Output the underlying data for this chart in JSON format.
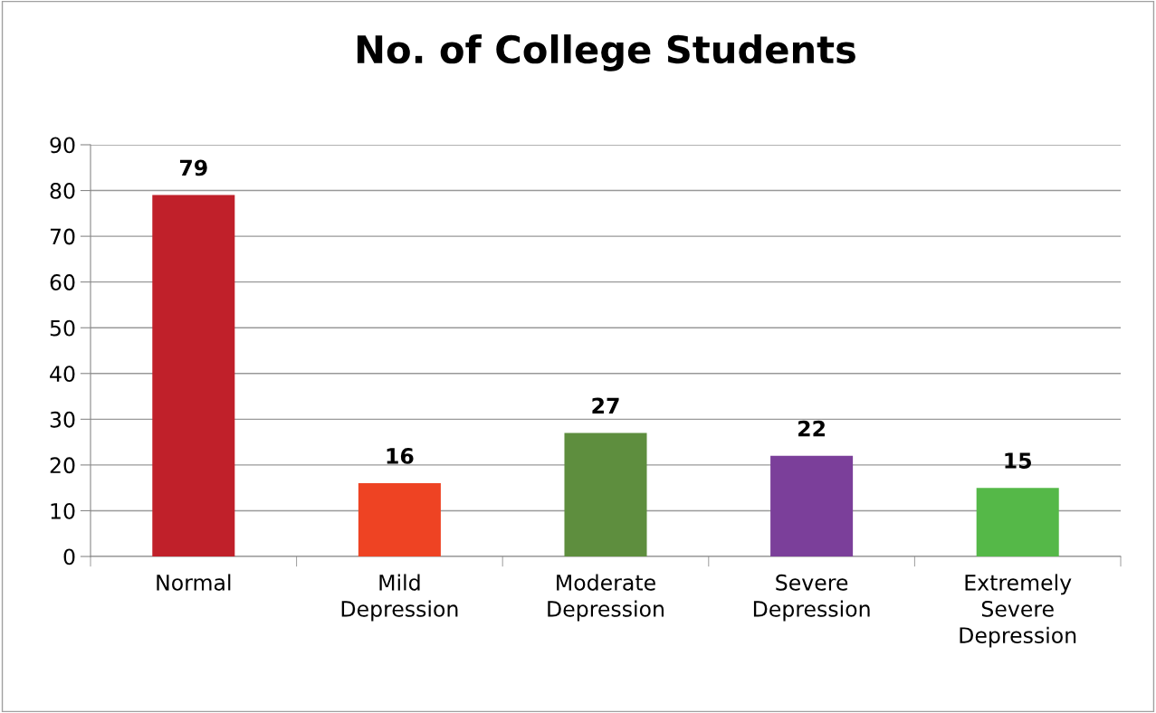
{
  "chart_data": {
    "type": "bar",
    "title": "No. of College Students",
    "categories": [
      "Normal",
      "Mild\nDepression",
      "Moderate\nDepression",
      "Severe\nDepression",
      "Extremely\nSevere\nDepression"
    ],
    "values": [
      79,
      16,
      27,
      22,
      15
    ],
    "colors": [
      "#c0202a",
      "#ee4323",
      "#5e8e3e",
      "#7b3f9a",
      "#55b848"
    ],
    "ylim": [
      0,
      90
    ],
    "yticks": [
      0,
      10,
      20,
      30,
      40,
      50,
      60,
      70,
      80,
      90
    ],
    "grid": "y",
    "data_labels": true,
    "legend": false
  }
}
